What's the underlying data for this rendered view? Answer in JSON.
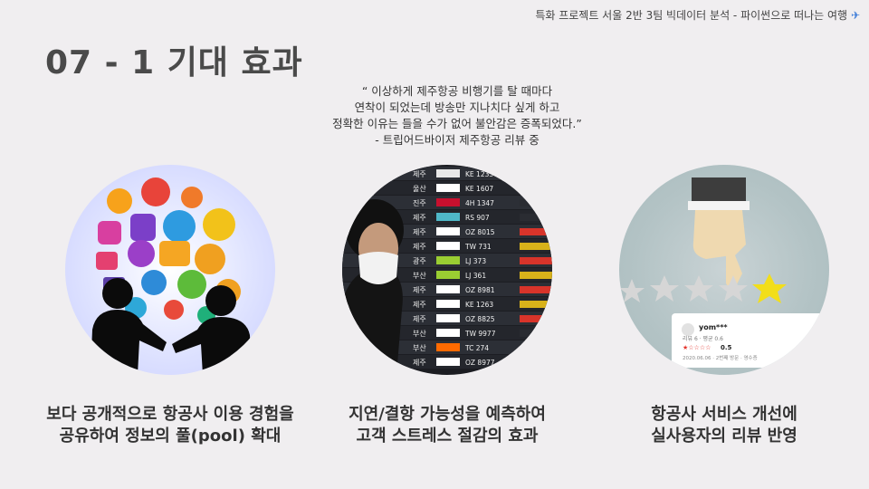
{
  "header": {
    "note": "특화 프로젝트 서울 2반 3팀 빅데이터 분석 - 파이썬으로 떠나는 여행",
    "icon": "airplane-icon"
  },
  "title": "07 - 1 기대 효과",
  "quote": {
    "lines": [
      "“ 이상하게 제주항공 비행기를 탈 때마다",
      "연착이 되었는데 방송만 지나치다 싶게 하고",
      "정확한 이유는 들을 수가 없어 불안감은 증폭되었다.”",
      "- 트립어드바이저 제주항공 리뷰 중"
    ]
  },
  "board": {
    "rows": [
      {
        "city": "제주",
        "flight": "KE 1235"
      },
      {
        "city": "울산",
        "flight": "KE 1607"
      },
      {
        "city": "진주",
        "flight": "4H 1347"
      },
      {
        "city": "제주",
        "flight": "RS 907"
      },
      {
        "city": "제주",
        "flight": "OZ 8015"
      },
      {
        "city": "제주",
        "flight": "TW 731"
      },
      {
        "city": "광주",
        "flight": "LJ 373"
      },
      {
        "city": "부산",
        "flight": "LJ 361"
      },
      {
        "city": "제주",
        "flight": "OZ 8981"
      },
      {
        "city": "제주",
        "flight": "KE 1263"
      },
      {
        "city": "제주",
        "flight": "OZ 8825"
      },
      {
        "city": "부산",
        "flight": "TW 9977"
      },
      {
        "city": "부산",
        "flight": "TC 274"
      },
      {
        "city": "제주",
        "flight": "OZ 8977"
      }
    ]
  },
  "review_card": {
    "user": "yom***",
    "meta": "리뷰 6 · 평균 0.6",
    "score": "0.5",
    "footer": "2020.06.06 · 2번째 방문 · 영수증"
  },
  "captions": [
    {
      "line1": "보다 공개적으로 항공사 이용 경험을",
      "line2": "공유하여 정보의 풀(pool) 확대"
    },
    {
      "line1": "지연/결항 가능성을 예측하여",
      "line2": "고객 스트레스 절감의 효과"
    },
    {
      "line1": "항공사 서비스 개선에",
      "line2": "실사용자의 리뷰 반영"
    }
  ]
}
